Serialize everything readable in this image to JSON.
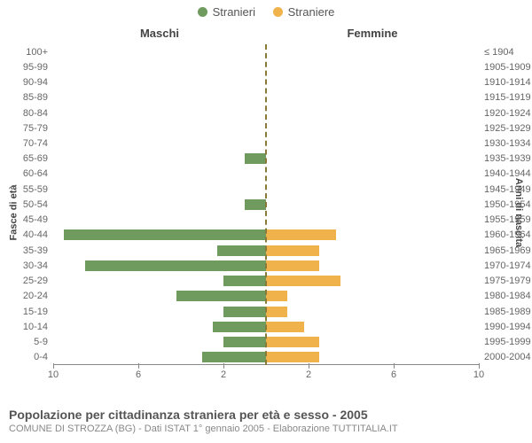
{
  "legend": {
    "male": {
      "label": "Stranieri",
      "color": "#6f9b5f"
    },
    "female": {
      "label": "Straniere",
      "color": "#f0b24a"
    }
  },
  "column_titles": {
    "left": "Maschi",
    "right": "Femmine"
  },
  "axis_titles": {
    "left": "Fasce di età",
    "right": "Anni di nascita"
  },
  "x_axis": {
    "max": 10,
    "tick_values": [
      10,
      6,
      2,
      2,
      6,
      10
    ],
    "tick_positions_pct": [
      0,
      20,
      40,
      60,
      80,
      100
    ]
  },
  "chart": {
    "type": "population-pyramid",
    "background": "#ffffff",
    "center_line_color": "#8a7a3a",
    "bar_height_ratio": 0.7,
    "rows": [
      {
        "age": "100+",
        "year": "≤ 1904",
        "m": 0,
        "f": 0
      },
      {
        "age": "95-99",
        "year": "1905-1909",
        "m": 0,
        "f": 0
      },
      {
        "age": "90-94",
        "year": "1910-1914",
        "m": 0,
        "f": 0
      },
      {
        "age": "85-89",
        "year": "1915-1919",
        "m": 0,
        "f": 0
      },
      {
        "age": "80-84",
        "year": "1920-1924",
        "m": 0,
        "f": 0
      },
      {
        "age": "75-79",
        "year": "1925-1929",
        "m": 0,
        "f": 0
      },
      {
        "age": "70-74",
        "year": "1930-1934",
        "m": 0,
        "f": 0
      },
      {
        "age": "65-69",
        "year": "1935-1939",
        "m": 1,
        "f": 0
      },
      {
        "age": "60-64",
        "year": "1940-1944",
        "m": 0,
        "f": 0
      },
      {
        "age": "55-59",
        "year": "1945-1949",
        "m": 0,
        "f": 0
      },
      {
        "age": "50-54",
        "year": "1950-1954",
        "m": 1,
        "f": 0
      },
      {
        "age": "45-49",
        "year": "1955-1959",
        "m": 0,
        "f": 0
      },
      {
        "age": "40-44",
        "year": "1960-1964",
        "m": 9.5,
        "f": 3.3
      },
      {
        "age": "35-39",
        "year": "1965-1969",
        "m": 2.3,
        "f": 2.5
      },
      {
        "age": "30-34",
        "year": "1970-1974",
        "m": 8.5,
        "f": 2.5
      },
      {
        "age": "25-29",
        "year": "1975-1979",
        "m": 2.0,
        "f": 3.5
      },
      {
        "age": "20-24",
        "year": "1980-1984",
        "m": 4.2,
        "f": 1.0
      },
      {
        "age": "15-19",
        "year": "1985-1989",
        "m": 2.0,
        "f": 1.0
      },
      {
        "age": "10-14",
        "year": "1990-1994",
        "m": 2.5,
        "f": 1.8
      },
      {
        "age": "5-9",
        "year": "1995-1999",
        "m": 2.0,
        "f": 2.5
      },
      {
        "age": "0-4",
        "year": "2000-2004",
        "m": 3.0,
        "f": 2.5
      }
    ]
  },
  "footer": {
    "title": "Popolazione per cittadinanza straniera per età e sesso - 2005",
    "subtitle": "COMUNE DI STROZZA (BG) - Dati ISTAT 1° gennaio 2005 - Elaborazione TUTTITALIA.IT"
  }
}
